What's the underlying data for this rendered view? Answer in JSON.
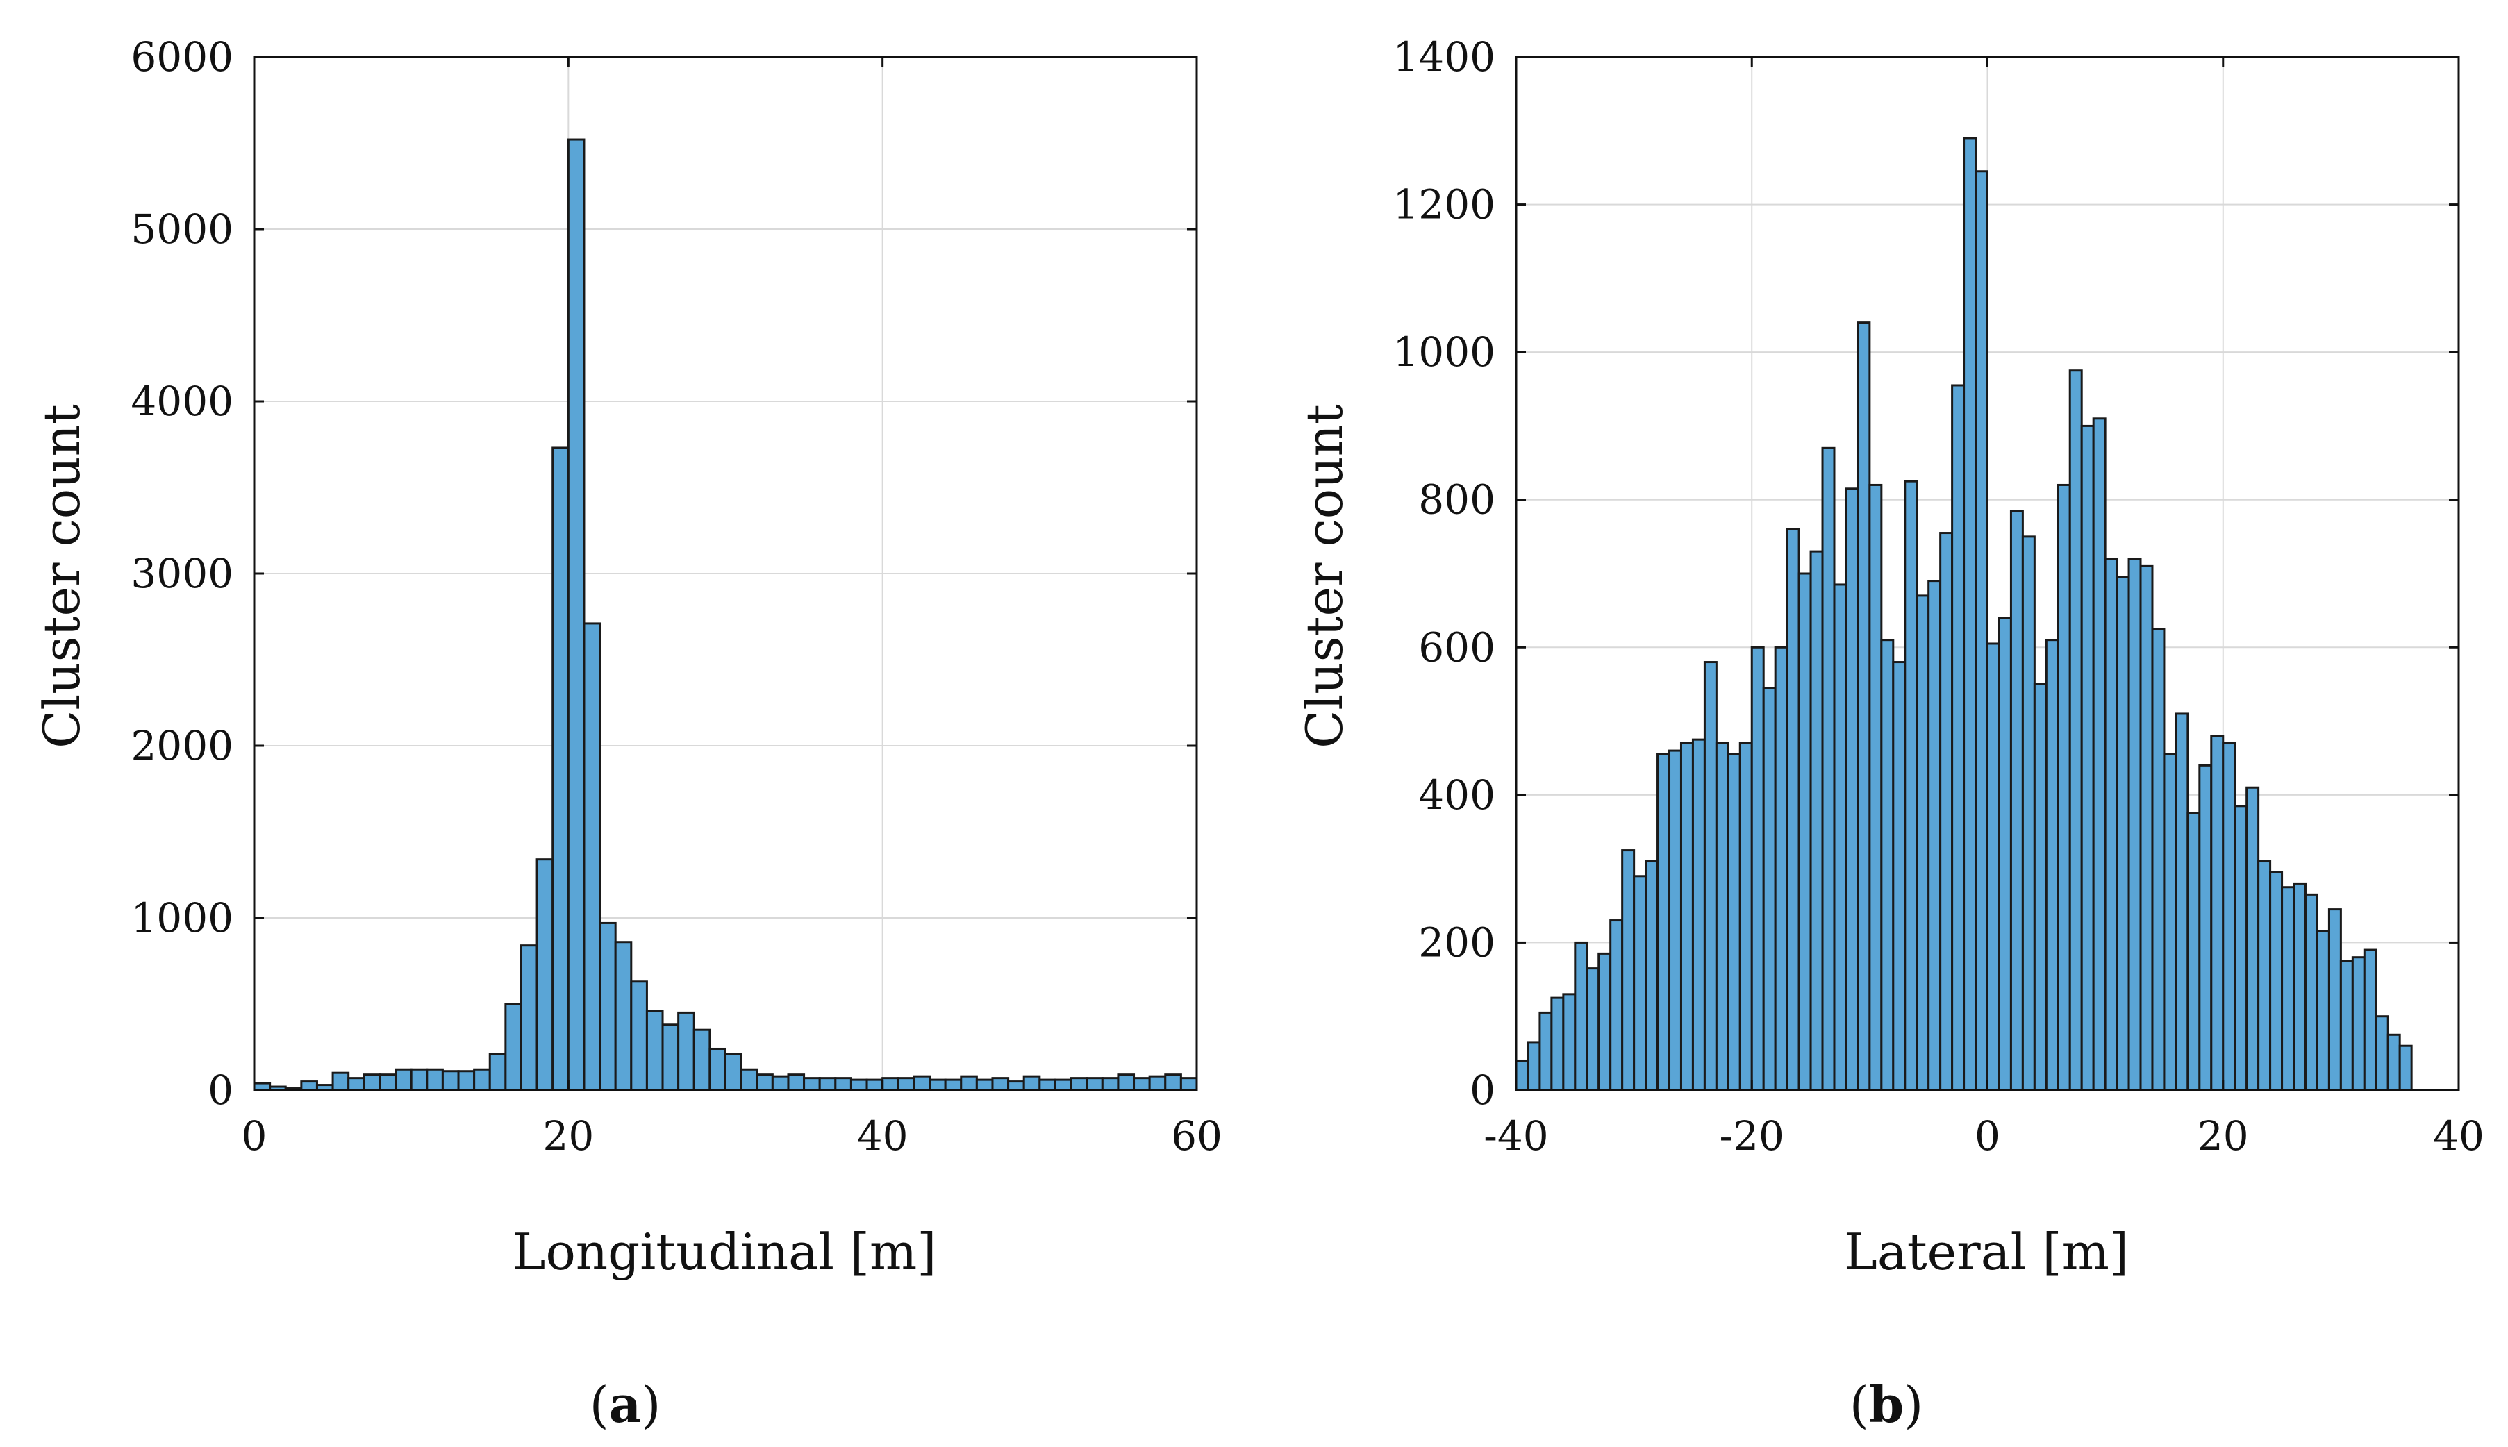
{
  "chart_data": [
    {
      "type": "bar",
      "panel_label": "a",
      "xlabel": "Longitudinal [m]",
      "ylabel": "Cluster count",
      "xlim": [
        0,
        60
      ],
      "ylim": [
        0,
        6000
      ],
      "xticks": [
        0,
        20,
        40,
        60
      ],
      "yticks": [
        0,
        1000,
        2000,
        3000,
        4000,
        5000,
        6000
      ],
      "grid": true,
      "bin_width": 1,
      "bin_start": 0,
      "values": [
        40,
        20,
        10,
        50,
        30,
        100,
        70,
        90,
        90,
        120,
        120,
        120,
        110,
        110,
        120,
        210,
        500,
        840,
        1340,
        3730,
        5520,
        2710,
        970,
        860,
        630,
        460,
        380,
        450,
        350,
        240,
        210,
        120,
        90,
        80,
        90,
        70,
        70,
        70,
        60,
        60,
        70,
        70,
        80,
        60,
        60,
        80,
        60,
        70,
        50,
        80,
        60,
        60,
        70,
        70,
        70,
        90,
        70,
        80,
        90,
        70
      ]
    },
    {
      "type": "bar",
      "panel_label": "b",
      "xlabel": "Lateral [m]",
      "ylabel": "Cluster count",
      "xlim": [
        -40,
        40
      ],
      "ylim": [
        0,
        1400
      ],
      "xticks": [
        -40,
        -20,
        0,
        20,
        40
      ],
      "yticks": [
        0,
        200,
        400,
        600,
        800,
        1000,
        1200,
        1400
      ],
      "grid": true,
      "bin_width": 1,
      "bin_start": -40,
      "values": [
        40,
        65,
        105,
        125,
        130,
        200,
        165,
        185,
        230,
        325,
        290,
        310,
        455,
        460,
        470,
        475,
        580,
        470,
        455,
        470,
        600,
        545,
        600,
        760,
        700,
        730,
        870,
        685,
        815,
        1040,
        820,
        610,
        580,
        825,
        670,
        690,
        755,
        955,
        1290,
        1245,
        605,
        640,
        785,
        750,
        550,
        610,
        820,
        975,
        900,
        910,
        720,
        695,
        720,
        710,
        625,
        455,
        510,
        375,
        440,
        480,
        470,
        385,
        410,
        310,
        295,
        275,
        280,
        265,
        215,
        245,
        175,
        180,
        190,
        100,
        75,
        60
      ]
    }
  ]
}
